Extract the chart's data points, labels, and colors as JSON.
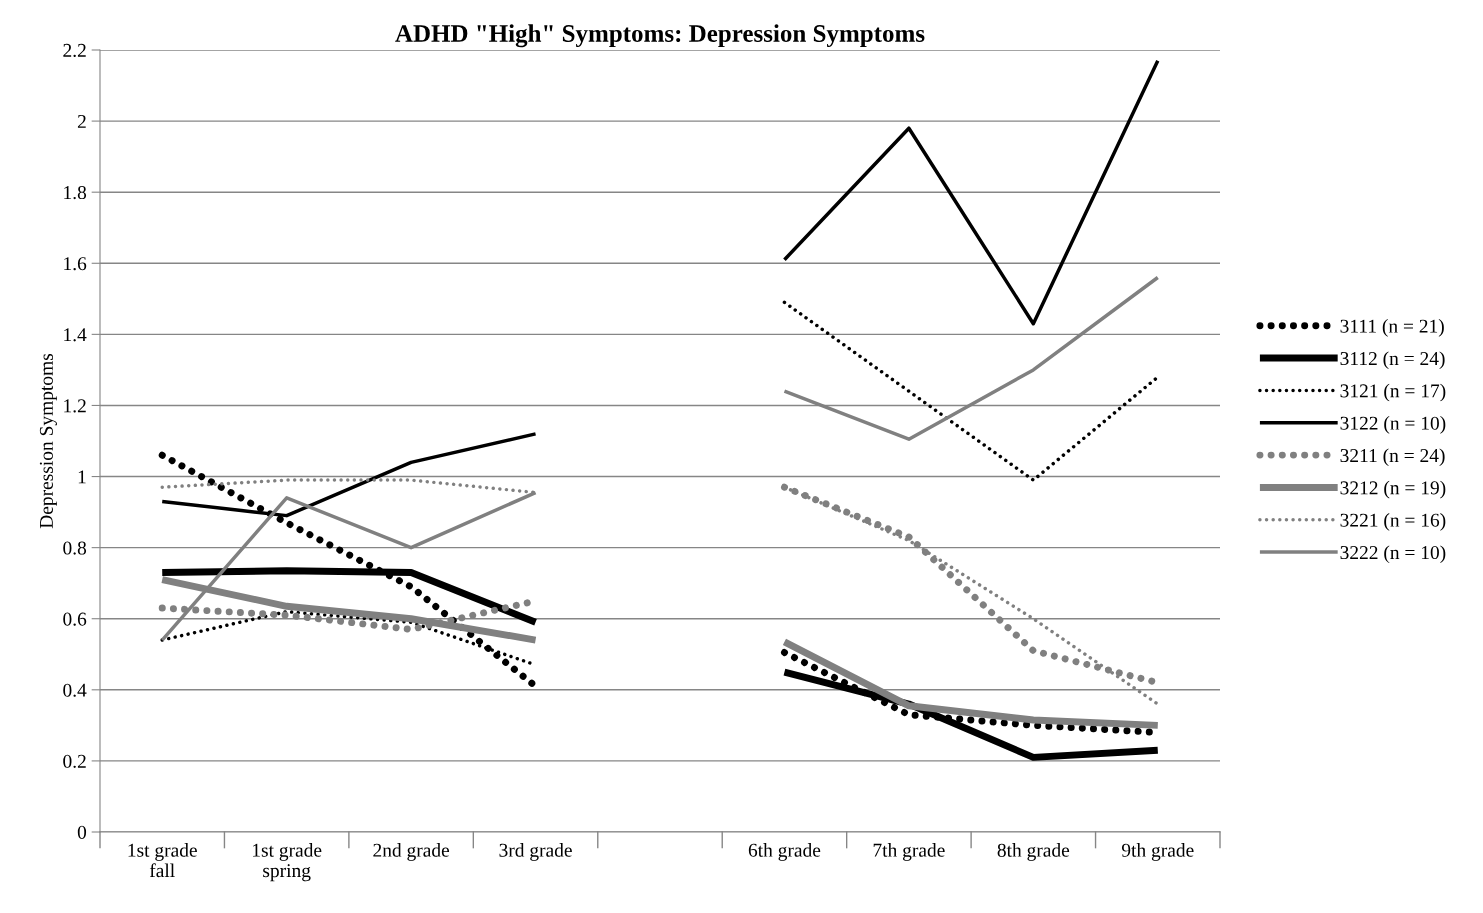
{
  "chart_data": {
    "type": "line",
    "title": "ADHD \"High\" Symptoms: Depression Symptoms",
    "ylabel": "Depression Symptoms",
    "categories": [
      "1st grade\nfall",
      "1st grade\nspring",
      "2nd grade",
      "3rd grade",
      null,
      "6th grade",
      "7th grade",
      "8th grade",
      "9th grade"
    ],
    "ylim": [
      0,
      2.2
    ],
    "yticks": [
      0,
      0.2,
      0.4,
      0.6,
      0.8,
      1,
      1.2,
      1.4,
      1.6,
      1.8,
      2,
      2.2
    ],
    "grid": "y",
    "legend": "right",
    "series": [
      {
        "name": "3111 (n = 21)",
        "color": "#000000",
        "line_style": "dotted",
        "values": [
          1.06,
          0.87,
          0.69,
          0.41,
          null,
          0.505,
          0.33,
          0.3,
          0.28
        ]
      },
      {
        "name": "3112 (n = 24)",
        "color": "#000000",
        "line_style": "solid",
        "values": [
          0.73,
          0.735,
          0.73,
          0.59,
          null,
          0.45,
          0.36,
          0.21,
          0.23
        ]
      },
      {
        "name": "3121 (n = 17)",
        "color": "#000000",
        "line_style": "dotted",
        "values": [
          0.54,
          0.62,
          0.59,
          0.47,
          null,
          1.49,
          1.24,
          0.99,
          1.28
        ]
      },
      {
        "name": "3122 (n = 10)",
        "color": "#000000",
        "line_style": "solid",
        "values": [
          0.93,
          0.89,
          1.04,
          1.12,
          null,
          1.61,
          1.98,
          1.43,
          2.17
        ]
      },
      {
        "name": "3211 (n = 24)",
        "color": "#808080",
        "line_style": "dotted",
        "values": [
          0.63,
          0.61,
          0.57,
          0.65,
          null,
          0.97,
          0.83,
          0.51,
          0.42
        ]
      },
      {
        "name": "3212 (n = 19)",
        "color": "#808080",
        "line_style": "solid",
        "values": [
          0.71,
          0.635,
          0.6,
          0.54,
          null,
          0.535,
          0.355,
          0.315,
          0.3
        ]
      },
      {
        "name": "3221 (n = 16)",
        "color": "#808080",
        "line_style": "dotted",
        "values": [
          0.97,
          0.99,
          0.99,
          0.955,
          null,
          0.97,
          0.82,
          0.6,
          0.36
        ]
      },
      {
        "name": "3222 (n = 10)",
        "color": "#808080",
        "line_style": "solid",
        "values": [
          0.54,
          0.94,
          0.8,
          0.955,
          null,
          1.24,
          1.105,
          1.3,
          1.56
        ]
      }
    ]
  }
}
